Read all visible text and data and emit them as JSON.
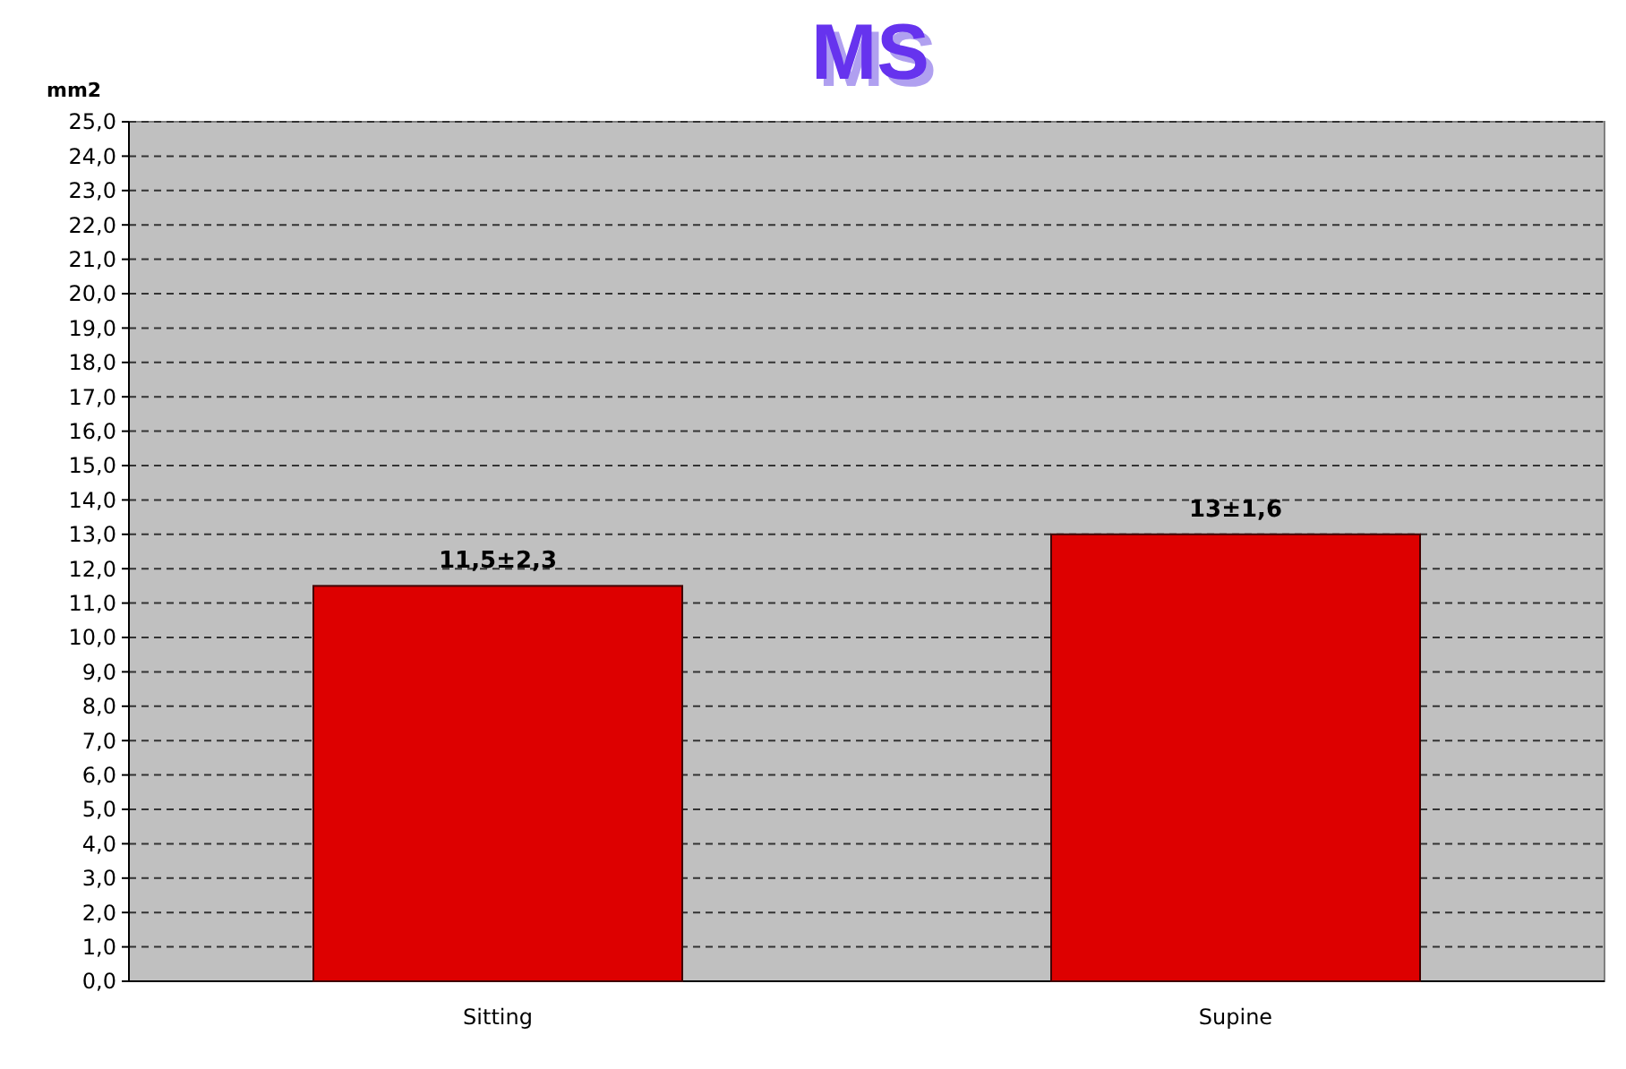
{
  "chart_data": {
    "type": "bar",
    "title": "MS",
    "ylabel": "mm2",
    "categories": [
      "Sitting",
      "Supine"
    ],
    "values": [
      11.5,
      13
    ],
    "value_labels": [
      "11,5±2,3",
      "13±1,6"
    ],
    "color": "#dd0000",
    "ylim": [
      0,
      25
    ],
    "yticks": [
      {
        "value": 0,
        "label": "0,0"
      },
      {
        "value": 1,
        "label": "1,0"
      },
      {
        "value": 2,
        "label": "2,0"
      },
      {
        "value": 3,
        "label": "3,0"
      },
      {
        "value": 4,
        "label": "4,0"
      },
      {
        "value": 5,
        "label": "5,0"
      },
      {
        "value": 6,
        "label": "6,0"
      },
      {
        "value": 7,
        "label": "7,0"
      },
      {
        "value": 8,
        "label": "8,0"
      },
      {
        "value": 9,
        "label": "9,0"
      },
      {
        "value": 10,
        "label": "10,0"
      },
      {
        "value": 11,
        "label": "11,0"
      },
      {
        "value": 12,
        "label": "12,0"
      },
      {
        "value": 13,
        "label": "13,0"
      },
      {
        "value": 14,
        "label": "14,0"
      },
      {
        "value": 15,
        "label": "15,0"
      },
      {
        "value": 16,
        "label": "16,0"
      },
      {
        "value": 17,
        "label": "17,0"
      },
      {
        "value": 18,
        "label": "18,0"
      },
      {
        "value": 19,
        "label": "19,0"
      },
      {
        "value": 20,
        "label": "20,0"
      },
      {
        "value": 21,
        "label": "21,0"
      },
      {
        "value": 22,
        "label": "22,0"
      },
      {
        "value": 23,
        "label": "23,0"
      },
      {
        "value": 24,
        "label": "24,0"
      },
      {
        "value": 25,
        "label": "25,0"
      }
    ],
    "grid": "y",
    "line_style": "dashed"
  }
}
